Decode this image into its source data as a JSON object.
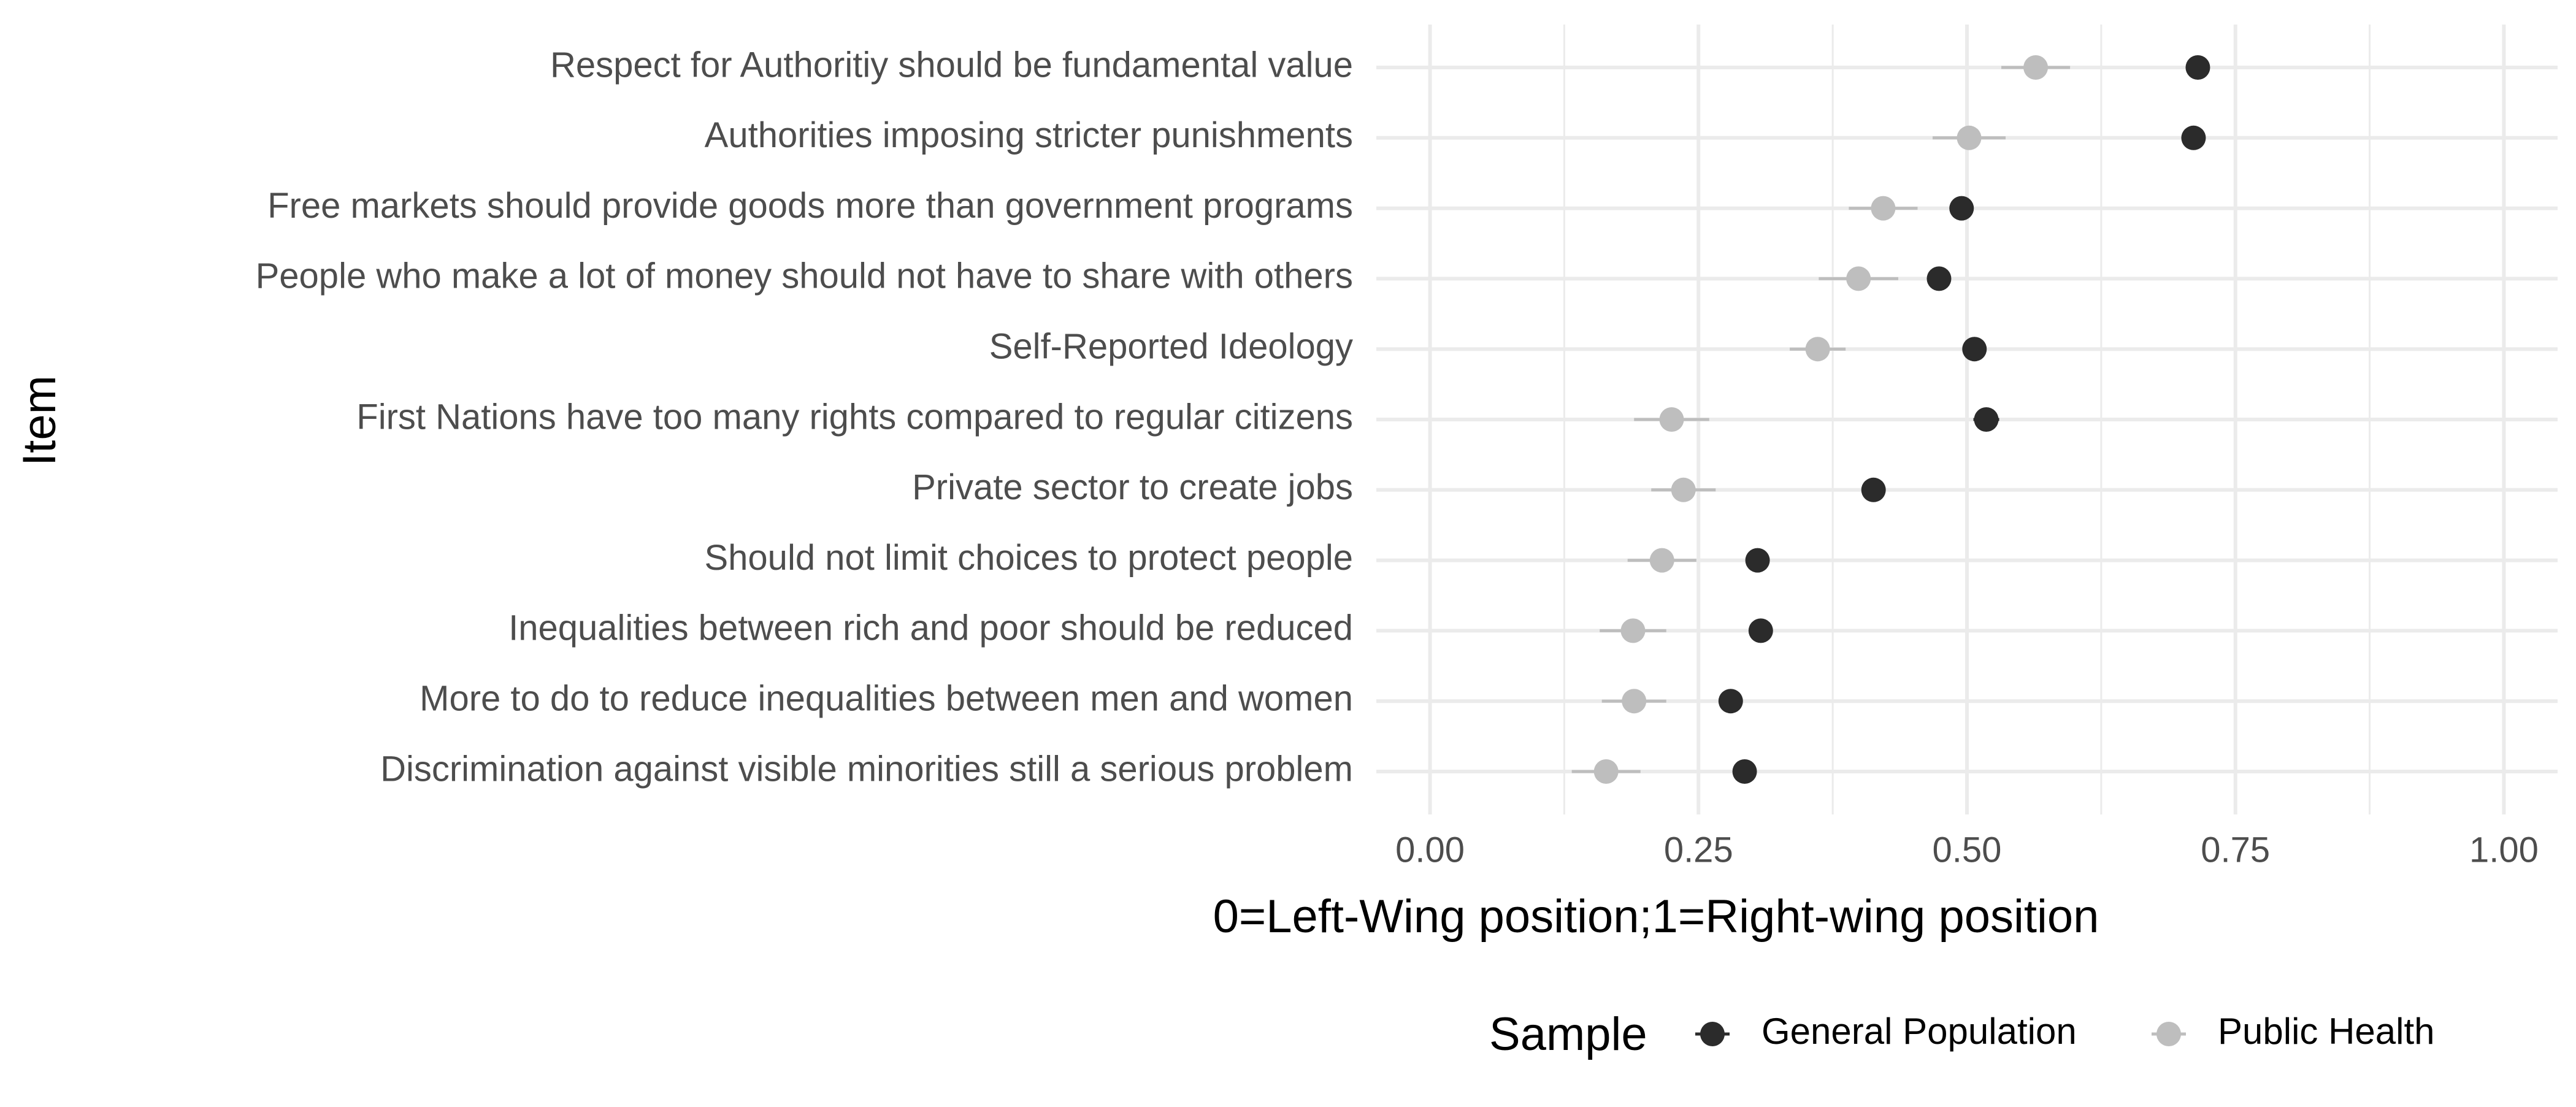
{
  "chart_data": {
    "type": "dot",
    "xlabel": "0=Left-Wing position;1=Right-wing position",
    "ylabel": "Item",
    "xlim": [
      -0.05,
      1.05
    ],
    "x_ticks": [
      0,
      0.25,
      0.5,
      0.75,
      1
    ],
    "x_tick_labels": [
      "0.00",
      "0.25",
      "0.50",
      "0.75",
      "1.00"
    ],
    "grid": true,
    "categories": [
      "Respect for Authoritiy should be fundamental value",
      "Authorities imposing stricter punishments",
      "Free markets should provide goods more than government programs",
      "People who make a lot of money should not have to share with others",
      "Self-Reported Ideology",
      "First Nations have too many rights compared to regular citizens",
      "Private sector to create jobs",
      "Should not limit choices to protect people",
      "Inequalities between rich and poor should be reduced",
      "More to do to reduce inequalities between men and women",
      "Discrimination against visible minorities still a serious problem"
    ],
    "series": [
      {
        "name": "General Population",
        "color": "#2b2b2b",
        "values": [
          0.715,
          0.711,
          0.495,
          0.474,
          0.507,
          0.518,
          0.413,
          0.305,
          0.308,
          0.28,
          0.293
        ],
        "ci_low": [
          0.705,
          0.702,
          0.485,
          0.464,
          0.497,
          0.506,
          0.403,
          0.295,
          0.298,
          0.27,
          0.283
        ],
        "ci_high": [
          0.725,
          0.72,
          0.505,
          0.484,
          0.517,
          0.53,
          0.423,
          0.315,
          0.318,
          0.29,
          0.303
        ]
      },
      {
        "name": "Public Health",
        "color": "#bebebe",
        "values": [
          0.564,
          0.502,
          0.422,
          0.399,
          0.361,
          0.225,
          0.236,
          0.216,
          0.189,
          0.19,
          0.164
        ],
        "ci_low": [
          0.532,
          0.468,
          0.39,
          0.362,
          0.335,
          0.19,
          0.206,
          0.184,
          0.158,
          0.16,
          0.132
        ],
        "ci_high": [
          0.596,
          0.536,
          0.454,
          0.436,
          0.387,
          0.26,
          0.266,
          0.248,
          0.22,
          0.22,
          0.196
        ]
      }
    ],
    "legend": {
      "title": "Sample",
      "position": "bottom"
    }
  }
}
